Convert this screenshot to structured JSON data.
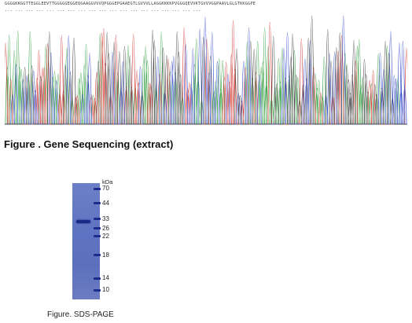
{
  "sequence_figure": {
    "caption": "Figure . Gene Sequencing (extract)",
    "sequence_line1": "GGGGKKGGTTEGGLEEVTTGGGGGEGGEQGAAGGVVVQPGGGEPGAAEGTLGVVVLLAGGKKKKPVGGGQEVVKTGVVVGGPAAVLGLGTKKGGPE",
    "sequence_line2": "...  ...  ...  ...  ...  ...  ...  ...  ...  ...  ...  ...  ...  ...  ...  ...  ...  ...  ..."
  },
  "gel_figure": {
    "caption": "Figure. SDS-PAGE",
    "unit_label": "kDa",
    "ladder": [
      {
        "label": "70"
      },
      {
        "label": "44"
      },
      {
        "label": "33"
      },
      {
        "label": "26"
      },
      {
        "label": "22"
      },
      {
        "label": "18"
      },
      {
        "label": "14"
      },
      {
        "label": "10"
      }
    ]
  }
}
